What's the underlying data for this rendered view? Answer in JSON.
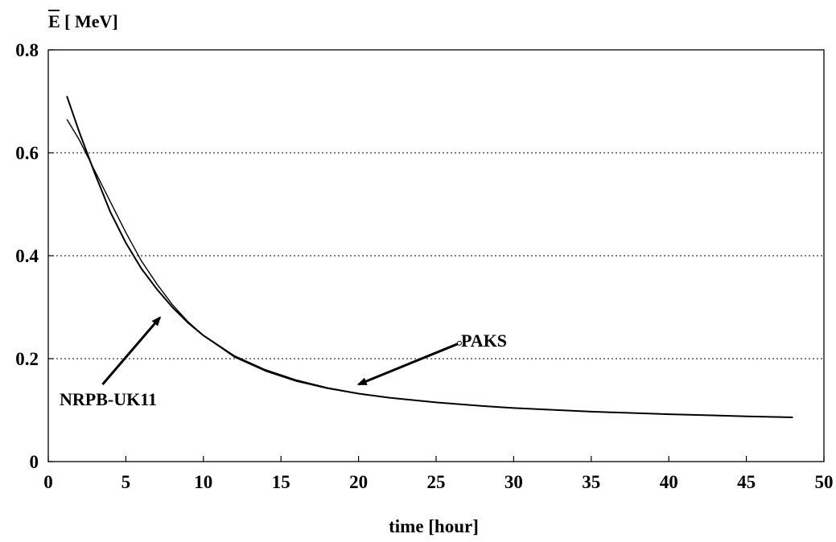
{
  "chart_data": {
    "type": "line",
    "title": "",
    "ylabel": "E [ MeV]",
    "ylabel_overline_char": "E",
    "xlabel": "time [hour]",
    "xlim": [
      0,
      50
    ],
    "ylim": [
      0,
      0.8
    ],
    "x_ticks": [
      "0",
      "5",
      "10",
      "15",
      "20",
      "25",
      "30",
      "35",
      "40",
      "45",
      "50"
    ],
    "y_ticks": [
      "0",
      "0.2",
      "0.4",
      "0.6",
      "0.8"
    ],
    "grid": "horizontal dotted at 0.2, 0.4, 0.6",
    "series": [
      {
        "name": "PAKS",
        "x": [
          1.2,
          2,
          3,
          4,
          5,
          6,
          7,
          8,
          9,
          10,
          12,
          14,
          16,
          18,
          20,
          22,
          25,
          28,
          30,
          35,
          40,
          45,
          48
        ],
        "y": [
          0.71,
          0.64,
          0.56,
          0.485,
          0.425,
          0.375,
          0.335,
          0.3,
          0.27,
          0.245,
          0.205,
          0.178,
          0.158,
          0.143,
          0.132,
          0.124,
          0.115,
          0.108,
          0.104,
          0.097,
          0.092,
          0.088,
          0.086
        ]
      },
      {
        "name": "NRPB-UK11",
        "x": [
          1.2,
          2,
          3,
          4,
          5,
          6,
          7,
          8,
          9,
          10,
          12,
          14,
          16,
          18,
          20,
          22,
          25,
          28,
          30,
          35,
          40,
          45,
          48
        ],
        "y": [
          0.665,
          0.625,
          0.565,
          0.505,
          0.445,
          0.39,
          0.345,
          0.305,
          0.272,
          0.245,
          0.203,
          0.176,
          0.156,
          0.142,
          0.132,
          0.124,
          0.115,
          0.108,
          0.104,
          0.097,
          0.092,
          0.088,
          0.086
        ]
      }
    ],
    "annotations": [
      {
        "text": "PAKS",
        "arrow_from": [
          26.5,
          0.23
        ],
        "arrow_to": [
          20,
          0.15
        ]
      },
      {
        "text": "NRPB-UK11",
        "arrow_from": [
          3.5,
          0.15
        ],
        "arrow_to": [
          7.2,
          0.28
        ]
      }
    ]
  }
}
